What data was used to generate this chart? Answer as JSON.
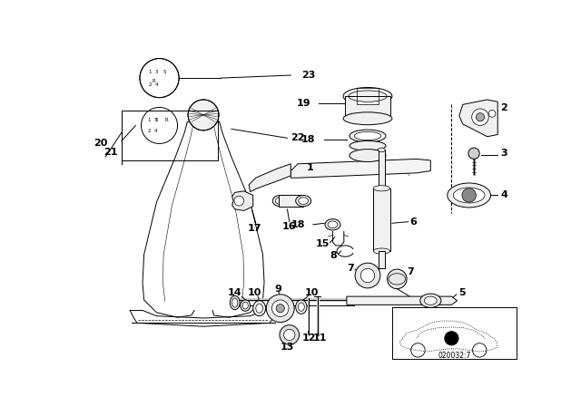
{
  "bg_color": "#ffffff",
  "line_color": "#000000",
  "diagram_code_text": "020032:7",
  "figure_width": 6.4,
  "figure_height": 4.48,
  "dpi": 100,
  "label_fs": 8,
  "small_fs": 5
}
